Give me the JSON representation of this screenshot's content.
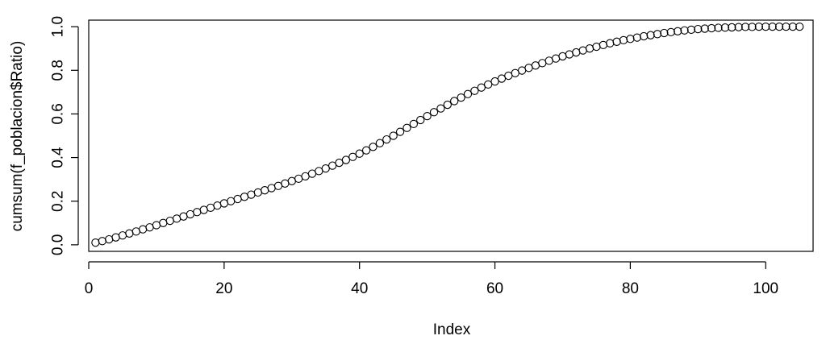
{
  "chart_data": {
    "type": "scatter",
    "title": "",
    "xlabel": "Index",
    "ylabel": "cumsum(f_poblacion$Ratio)",
    "xlim": [
      0,
      107
    ],
    "ylim": [
      -0.03,
      1.03
    ],
    "x_ticks": [
      0,
      20,
      40,
      60,
      80,
      100
    ],
    "x_tick_labels": [
      "0",
      "20",
      "40",
      "60",
      "80",
      "100"
    ],
    "y_ticks": [
      0.0,
      0.2,
      0.4,
      0.6,
      0.8,
      1.0
    ],
    "y_tick_labels": [
      "0.0",
      "0.2",
      "0.4",
      "0.6",
      "0.8",
      "1.0"
    ],
    "grid": false,
    "marker": "open-circle",
    "series": [
      {
        "x": [
          1,
          2,
          3,
          4,
          5,
          6,
          7,
          8,
          9,
          10,
          11,
          12,
          13,
          14,
          15,
          16,
          17,
          18,
          19,
          20,
          21,
          22,
          23,
          24,
          25,
          26,
          27,
          28,
          29,
          30,
          31,
          32,
          33,
          34,
          35,
          36,
          37,
          38,
          39,
          40,
          41,
          42,
          43,
          44,
          45,
          46,
          47,
          48,
          49,
          50,
          51,
          52,
          53,
          54,
          55,
          56,
          57,
          58,
          59,
          60,
          61,
          62,
          63,
          64,
          65,
          66,
          67,
          68,
          69,
          70,
          71,
          72,
          73,
          74,
          75,
          76,
          77,
          78,
          79,
          80,
          81,
          82,
          83,
          84,
          85,
          86,
          87,
          88,
          89,
          90,
          91,
          92,
          93,
          94,
          95,
          96,
          97,
          98,
          99,
          100,
          101,
          102,
          103,
          104,
          105
        ],
        "y": [
          0.01,
          0.017,
          0.025,
          0.034,
          0.043,
          0.052,
          0.061,
          0.071,
          0.08,
          0.09,
          0.1,
          0.11,
          0.12,
          0.13,
          0.14,
          0.15,
          0.16,
          0.17,
          0.18,
          0.19,
          0.2,
          0.21,
          0.22,
          0.23,
          0.24,
          0.25,
          0.26,
          0.27,
          0.281,
          0.292,
          0.303,
          0.314,
          0.326,
          0.338,
          0.35,
          0.363,
          0.376,
          0.389,
          0.403,
          0.418,
          0.433,
          0.449,
          0.466,
          0.483,
          0.5,
          0.518,
          0.536,
          0.554,
          0.572,
          0.59,
          0.608,
          0.625,
          0.642,
          0.659,
          0.675,
          0.691,
          0.706,
          0.721,
          0.735,
          0.749,
          0.762,
          0.775,
          0.787,
          0.799,
          0.811,
          0.822,
          0.833,
          0.844,
          0.854,
          0.864,
          0.873,
          0.882,
          0.891,
          0.9,
          0.908,
          0.916,
          0.924,
          0.931,
          0.938,
          0.944,
          0.95,
          0.956,
          0.961,
          0.966,
          0.971,
          0.975,
          0.979,
          0.983,
          0.986,
          0.989,
          0.991,
          0.993,
          0.995,
          0.996,
          0.997,
          0.998,
          0.999,
          0.999,
          1.0,
          1.0,
          1.0,
          1.0,
          1.0,
          1.0,
          1.0
        ]
      }
    ]
  }
}
